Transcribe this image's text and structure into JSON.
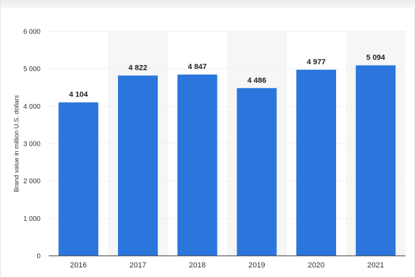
{
  "chart_data": {
    "type": "bar",
    "categories": [
      "2016",
      "2017",
      "2018",
      "2019",
      "2020",
      "2021"
    ],
    "values": [
      4104,
      4822,
      4847,
      4486,
      4977,
      5094
    ],
    "value_labels": [
      "4 104",
      "4 822",
      "4 847",
      "4 486",
      "4 977",
      "5 094"
    ],
    "title": "",
    "xlabel": "",
    "ylabel": "Brand value in million U.S. dollars",
    "ylim": [
      0,
      6000
    ],
    "yticks": [
      0,
      1000,
      2000,
      3000,
      4000,
      5000,
      6000
    ],
    "ytick_labels": [
      "0",
      "1 000",
      "2 000",
      "3 000",
      "4 000",
      "5 000",
      "6 000"
    ],
    "grid": true,
    "legend": "none",
    "colors": {
      "bar": "#2a76dd",
      "alternate_band": "#f6f6f6",
      "gridline": "#e6e6e6",
      "axis": "#333333"
    }
  }
}
